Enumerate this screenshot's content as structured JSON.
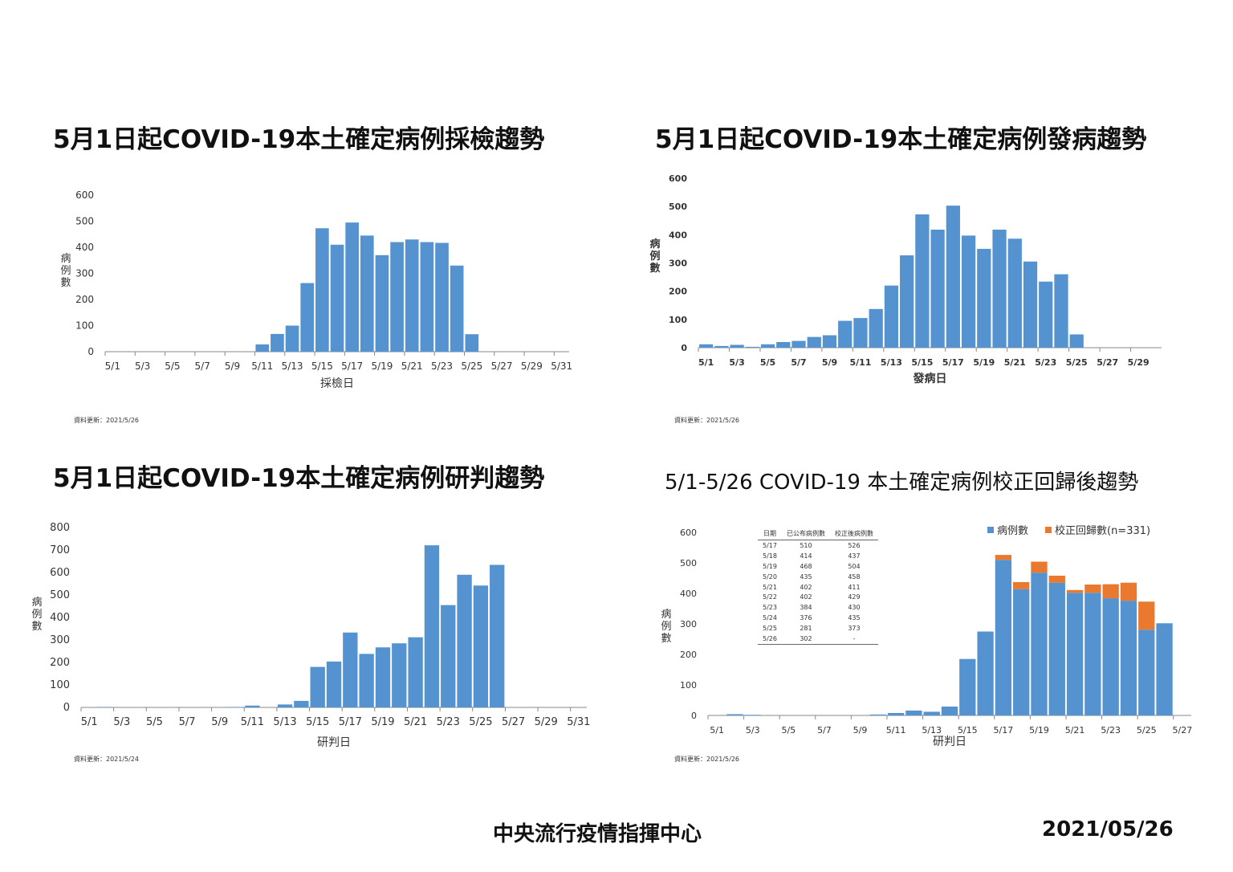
{
  "titles": {
    "c1": "5月1日起COVID-19本土確定病例採檢趨勢",
    "c2": "5月1日起COVID-19本土確定病例發病趨勢",
    "c3": "5月1日起COVID-19本土確定病例研判趨勢",
    "c4": "5/1-5/26 COVID-19 本土確定病例校正回歸後趨勢"
  },
  "updates": {
    "c1": "資料更新：2021/5/26",
    "c2": "資料更新：2021/5/26",
    "c3": "資料更新：2021/5/24",
    "c4": "資料更新：2021/5/26"
  },
  "footer": {
    "org": "中央流行疫情指揮中心",
    "date": "2021/05/26"
  },
  "colors": {
    "bar": "#5592d0",
    "corrected": "#e9792f",
    "axis": "#888888"
  },
  "table": {
    "headers": [
      "日期",
      "已公布病例數",
      "校正後病例數"
    ],
    "rows": [
      [
        "5/17",
        "510",
        "526"
      ],
      [
        "5/18",
        "414",
        "437"
      ],
      [
        "5/19",
        "468",
        "504"
      ],
      [
        "5/20",
        "435",
        "458"
      ],
      [
        "5/21",
        "402",
        "411"
      ],
      [
        "5/22",
        "402",
        "429"
      ],
      [
        "5/23",
        "384",
        "430"
      ],
      [
        "5/24",
        "376",
        "435"
      ],
      [
        "5/25",
        "281",
        "373"
      ],
      [
        "5/26",
        "302",
        "-"
      ]
    ]
  },
  "chart_data": [
    {
      "type": "bar",
      "ylabel": "病例數",
      "xlabel": "採檢日",
      "ylim": [
        0,
        600
      ],
      "yticks": [
        0,
        100,
        200,
        300,
        400,
        500,
        600
      ],
      "categories": [
        "5/1",
        "5/2",
        "5/3",
        "5/4",
        "5/5",
        "5/6",
        "5/7",
        "5/8",
        "5/9",
        "5/10",
        "5/11",
        "5/12",
        "5/13",
        "5/14",
        "5/15",
        "5/16",
        "5/17",
        "5/18",
        "5/19",
        "5/20",
        "5/21",
        "5/22",
        "5/23",
        "5/24",
        "5/25",
        "5/26",
        "5/27",
        "5/28",
        "5/29",
        "5/30",
        "5/31"
      ],
      "xticklabels": [
        "5/1",
        "5/3",
        "5/5",
        "5/7",
        "5/9",
        "5/11",
        "5/13",
        "5/15",
        "5/17",
        "5/19",
        "5/21",
        "5/23",
        "5/25",
        "5/27",
        "5/29",
        "5/31"
      ],
      "values": [
        0,
        0,
        0,
        0,
        0,
        0,
        0,
        0,
        0,
        0,
        28,
        68,
        100,
        263,
        473,
        410,
        495,
        445,
        370,
        420,
        430,
        420,
        417,
        330,
        67,
        0,
        0,
        0,
        0,
        0,
        0
      ]
    },
    {
      "type": "bar",
      "ylabel": "病例數",
      "xlabel": "發病日",
      "ylim": [
        0,
        600
      ],
      "yticks": [
        0,
        100,
        200,
        300,
        400,
        500,
        600
      ],
      "categories": [
        "5/1",
        "5/2",
        "5/3",
        "5/4",
        "5/5",
        "5/6",
        "5/7",
        "5/8",
        "5/9",
        "5/10",
        "5/11",
        "5/12",
        "5/13",
        "5/14",
        "5/15",
        "5/16",
        "5/17",
        "5/18",
        "5/19",
        "5/20",
        "5/21",
        "5/22",
        "5/23",
        "5/24",
        "5/25",
        "5/26",
        "5/27",
        "5/28",
        "5/29",
        "5/30"
      ],
      "xticklabels": [
        "5/1",
        "5/3",
        "5/5",
        "5/7",
        "5/9",
        "5/11",
        "5/13",
        "5/15",
        "5/17",
        "5/19",
        "5/21",
        "5/23",
        "5/25",
        "5/27",
        "5/29"
      ],
      "values": [
        12,
        6,
        10,
        3,
        12,
        20,
        24,
        38,
        44,
        95,
        105,
        137,
        220,
        327,
        472,
        418,
        503,
        397,
        350,
        418,
        386,
        305,
        234,
        260,
        47,
        0,
        0,
        0,
        0,
        0
      ]
    },
    {
      "type": "bar",
      "ylabel": "病例數",
      "xlabel": "研判日",
      "ylim": [
        0,
        800
      ],
      "yticks": [
        0,
        100,
        200,
        300,
        400,
        500,
        600,
        700,
        800
      ],
      "categories": [
        "5/1",
        "5/2",
        "5/3",
        "5/4",
        "5/5",
        "5/6",
        "5/7",
        "5/8",
        "5/9",
        "5/10",
        "5/11",
        "5/12",
        "5/13",
        "5/14",
        "5/15",
        "5/16",
        "5/17",
        "5/18",
        "5/19",
        "5/20",
        "5/21",
        "5/22",
        "5/23",
        "5/24",
        "5/25",
        "5/26",
        "5/27",
        "5/28",
        "5/29",
        "5/30",
        "5/31"
      ],
      "xticklabels": [
        "5/1",
        "5/3",
        "5/5",
        "5/7",
        "5/9",
        "5/11",
        "5/13",
        "5/15",
        "5/17",
        "5/19",
        "5/21",
        "5/23",
        "5/25",
        "5/27",
        "5/29",
        "5/31"
      ],
      "values": [
        0,
        2,
        0,
        0,
        0,
        0,
        0,
        0,
        0,
        2,
        8,
        0,
        13,
        29,
        180,
        204,
        333,
        238,
        267,
        285,
        312,
        721,
        455,
        590,
        542,
        634,
        0,
        0,
        0,
        0,
        0
      ]
    },
    {
      "type": "bar",
      "stacked": true,
      "ylabel": "病例數",
      "xlabel": "研判日",
      "ylim": [
        0,
        600
      ],
      "yticks": [
        0,
        100,
        200,
        300,
        400,
        500,
        600
      ],
      "legend": "top-right",
      "categories": [
        "5/1",
        "5/2",
        "5/3",
        "5/4",
        "5/5",
        "5/6",
        "5/7",
        "5/8",
        "5/9",
        "5/10",
        "5/11",
        "5/12",
        "5/13",
        "5/14",
        "5/15",
        "5/16",
        "5/17",
        "5/18",
        "5/19",
        "5/20",
        "5/21",
        "5/22",
        "5/23",
        "5/24",
        "5/25",
        "5/26",
        "5/27"
      ],
      "xticklabels": [
        "5/1",
        "5/3",
        "5/5",
        "5/7",
        "5/9",
        "5/11",
        "5/13",
        "5/15",
        "5/17",
        "5/19",
        "5/21",
        "5/23",
        "5/25",
        "5/27"
      ],
      "series": [
        {
          "name": "病例數",
          "values": [
            0,
            4,
            2,
            0,
            0,
            0,
            0,
            0,
            0,
            3,
            8,
            16,
            12,
            29,
            185,
            275,
            510,
            414,
            468,
            435,
            402,
            402,
            384,
            376,
            281,
            302,
            0
          ]
        },
        {
          "name": "校正回歸數(n=331)",
          "values": [
            0,
            0,
            0,
            0,
            0,
            0,
            0,
            0,
            0,
            0,
            0,
            0,
            0,
            0,
            0,
            0,
            16,
            23,
            36,
            23,
            9,
            27,
            46,
            59,
            92,
            0,
            0
          ]
        }
      ]
    }
  ]
}
